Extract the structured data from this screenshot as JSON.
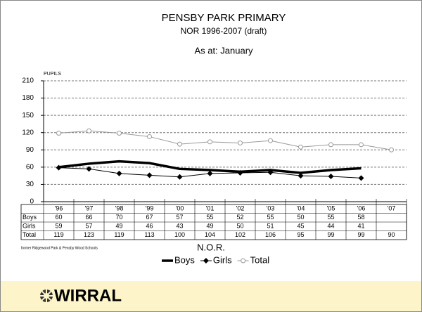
{
  "chart_data": {
    "type": "line",
    "title": "PENSBY PARK PRIMARY",
    "subtitle": "NOR  1996-2007 (draft)",
    "note": "As at: January",
    "ylabel": "PUPILS",
    "xlabel": "N.O.R.",
    "footnote": "former Ridgewood Park & Pensby Wood Schools",
    "categories": [
      "'96",
      "'97",
      "'98",
      "'99",
      "'00",
      "'01",
      "'02",
      "'03",
      "'04",
      "'05",
      "'06",
      "'07"
    ],
    "series": [
      {
        "name": "Boys",
        "color": "#000000",
        "width": 3.5,
        "marker": "none",
        "values": [
          60,
          66,
          70,
          67,
          57,
          55,
          52,
          55,
          50,
          55,
          58,
          null
        ]
      },
      {
        "name": "Girls",
        "color": "#000000",
        "width": 1,
        "marker": "diamond",
        "values": [
          59,
          57,
          49,
          46,
          43,
          49,
          50,
          51,
          45,
          44,
          41,
          null
        ]
      },
      {
        "name": "Total",
        "color": "#999999",
        "width": 1,
        "marker": "circle",
        "values": [
          119,
          123,
          119,
          113,
          100,
          104,
          102,
          106,
          95,
          99,
          99,
          90
        ]
      }
    ],
    "ylim": [
      0,
      210
    ],
    "yticks": [
      0,
      30,
      60,
      90,
      120,
      150,
      180,
      210
    ],
    "grid": true,
    "legend": "bottom"
  },
  "logo": "WIRRAL"
}
